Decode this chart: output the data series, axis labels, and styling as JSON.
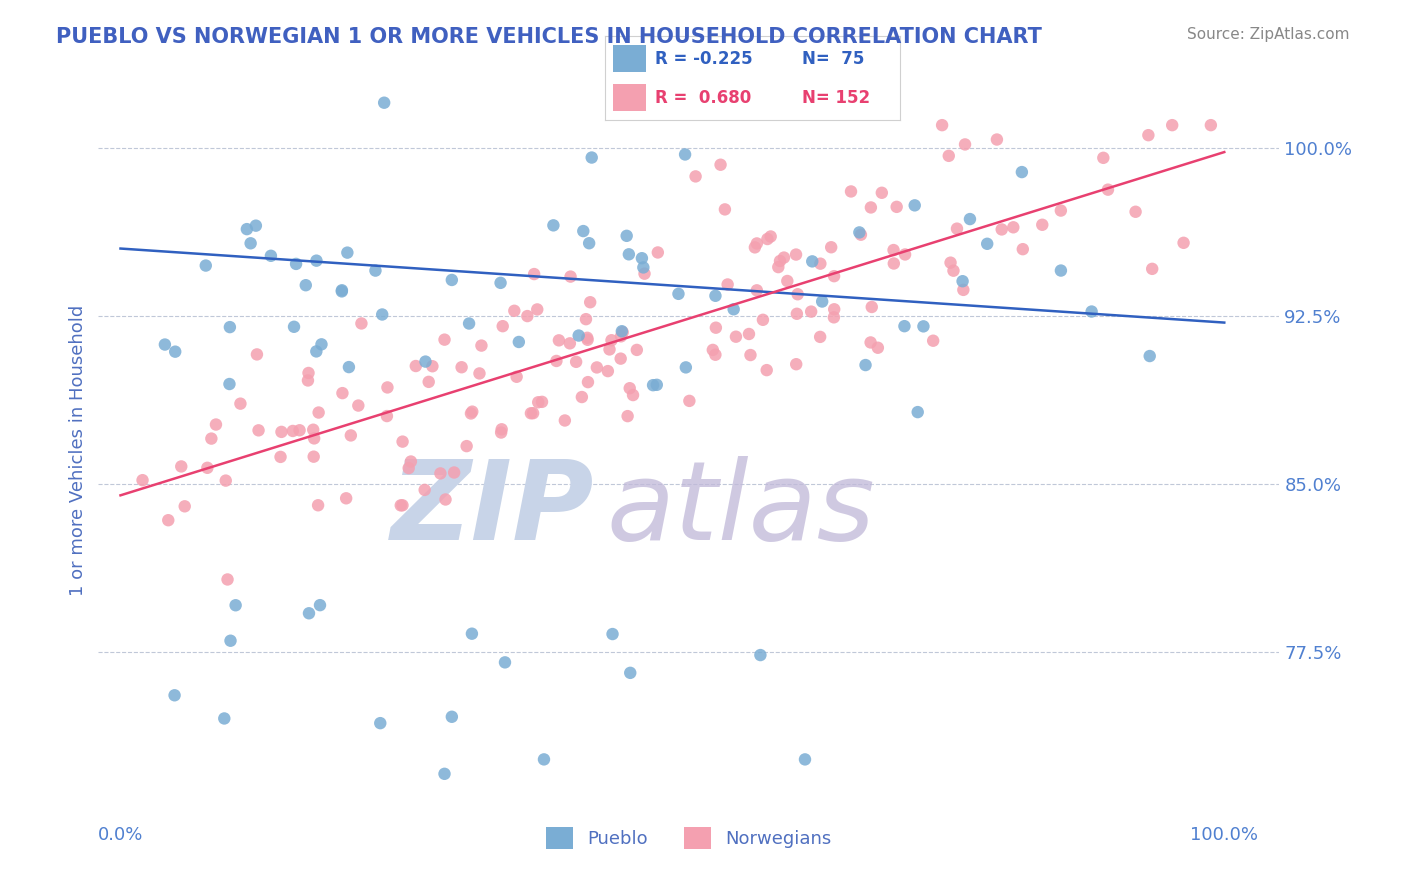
{
  "title": "PUEBLO VS NORWEGIAN 1 OR MORE VEHICLES IN HOUSEHOLD CORRELATION CHART",
  "source_text": "Source: ZipAtlas.com",
  "ylabel": "1 or more Vehicles in Household",
  "x_tick_labels": [
    "0.0%",
    "100.0%"
  ],
  "y_tick_labels": [
    "77.5%",
    "85.0%",
    "92.5%",
    "100.0%"
  ],
  "y_min": 0.7,
  "y_max": 1.03,
  "x_min": -0.02,
  "x_max": 1.05,
  "blue_color": "#7aadd4",
  "pink_color": "#f4a0b0",
  "blue_line_color": "#3060c0",
  "pink_line_color": "#e84070",
  "watermark_zip_color": "#c8d4e8",
  "watermark_atlas_color": "#c0b8d8",
  "background_color": "#ffffff",
  "title_color": "#4060c0",
  "axis_label_color": "#5070c0",
  "tick_label_color": "#5080d0",
  "grid_color": "#c0c8d8",
  "blue_R": -0.225,
  "pink_R": 0.68,
  "blue_N": 75,
  "pink_N": 152,
  "blue_line_start_y": 0.955,
  "blue_line_end_y": 0.922,
  "pink_line_start_y": 0.845,
  "pink_line_end_y": 0.998,
  "seed": 42
}
